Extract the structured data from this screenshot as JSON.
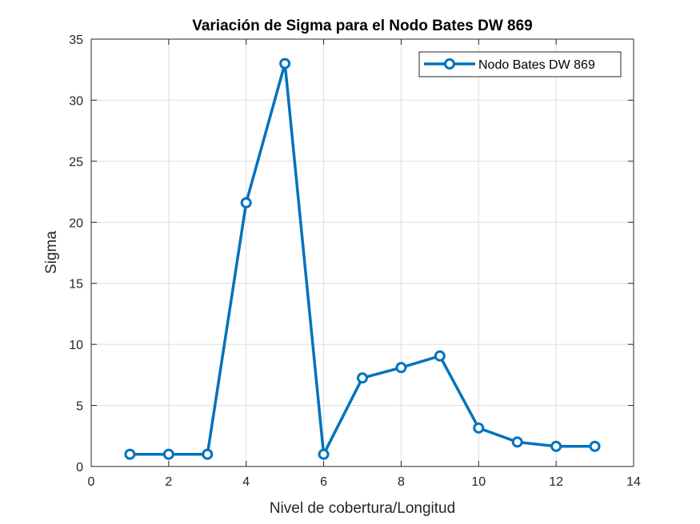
{
  "chart_data": {
    "type": "line",
    "title": "Variación de Sigma para el Nodo Bates DW 869",
    "xlabel": "Nivel de cobertura/Longitud",
    "ylabel": "Sigma",
    "xlim": [
      0,
      14
    ],
    "ylim": [
      0,
      35
    ],
    "xticks": [
      0,
      2,
      4,
      6,
      8,
      10,
      12,
      14
    ],
    "yticks": [
      0,
      5,
      10,
      15,
      20,
      25,
      30,
      35
    ],
    "grid": true,
    "legend_position": "top-right",
    "series": [
      {
        "name": "Nodo Bates DW 869",
        "color": "#0072BD",
        "marker": "circle",
        "x": [
          1,
          2,
          3,
          4,
          5,
          6,
          7,
          8,
          9,
          10,
          11,
          12,
          13
        ],
        "y": [
          1.0,
          1.0,
          1.0,
          21.6,
          33.0,
          1.0,
          7.25,
          8.1,
          9.05,
          3.15,
          2.0,
          1.65,
          1.65
        ]
      }
    ]
  }
}
